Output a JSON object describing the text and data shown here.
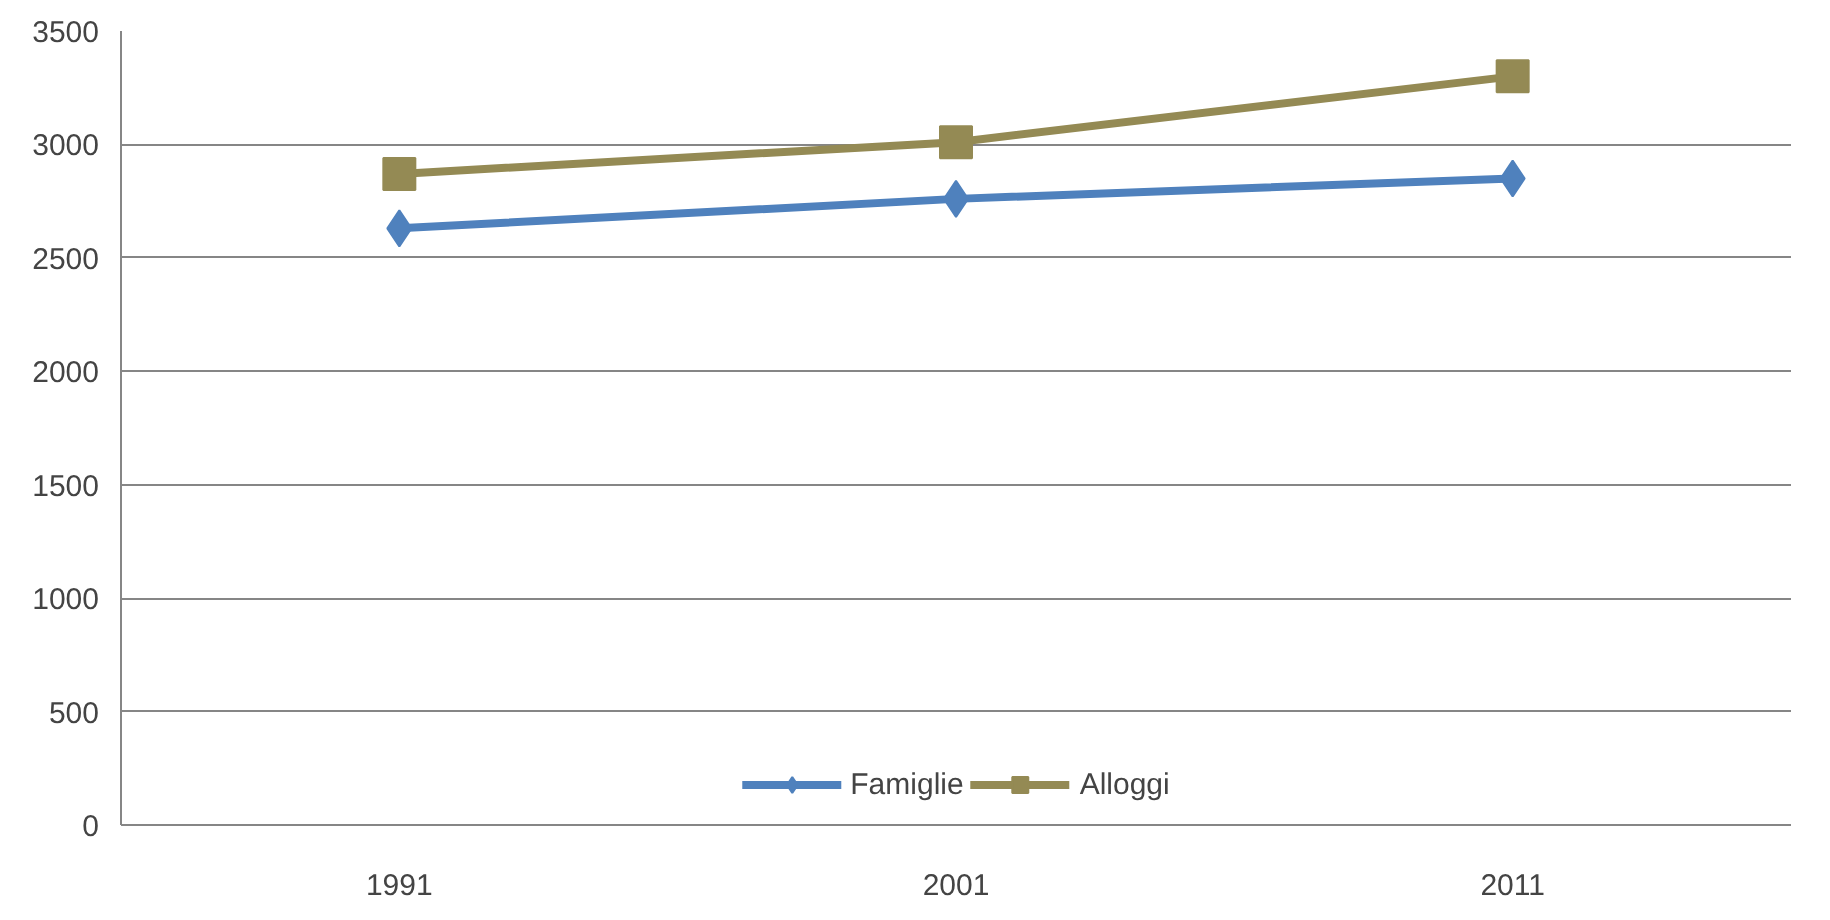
{
  "chart_data": {
    "type": "line",
    "categories": [
      "1991",
      "2001",
      "2011"
    ],
    "series": [
      {
        "name": "Famiglie",
        "color": "#4f81bd",
        "values": [
          2630,
          2760,
          2850
        ],
        "marker": "diamond"
      },
      {
        "name": "Alloggi",
        "color": "#948a54",
        "values": [
          2870,
          3010,
          3300
        ],
        "marker": "square"
      }
    ],
    "ylim": [
      0,
      3500
    ],
    "yticks": [
      0,
      500,
      1000,
      1500,
      2000,
      2500,
      3000,
      3500
    ],
    "grid": "y",
    "legend": "bottom",
    "line_style": "solid"
  }
}
